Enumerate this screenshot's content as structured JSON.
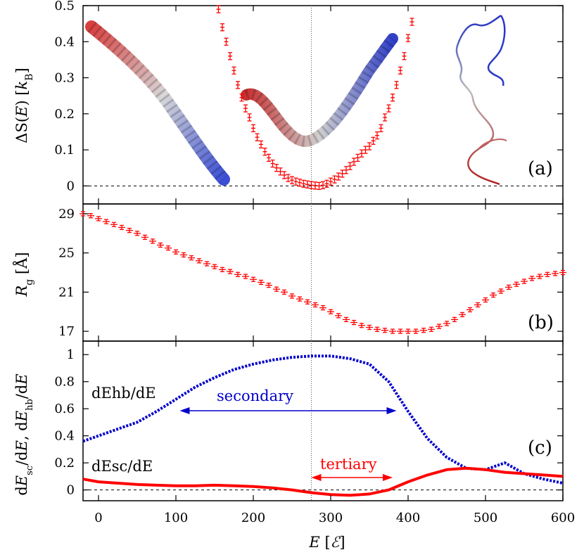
{
  "chart_data": [
    {
      "panel": "(a)",
      "type": "scatter",
      "error_bars": true,
      "ylabel": "ΔS(E) [kB]",
      "ylim": [
        -0.05,
        0.5
      ],
      "yticks": [
        "0",
        "0.1",
        "0.2",
        "0.3",
        "0.4",
        "0.5"
      ],
      "series": [
        {
          "color": "#ff0000",
          "x": [
            155,
            160,
            165,
            170,
            175,
            180,
            185,
            190,
            195,
            200,
            205,
            210,
            215,
            220,
            225,
            230,
            235,
            240,
            245,
            250,
            255,
            260,
            265,
            270,
            275,
            280,
            285,
            290,
            295,
            300,
            305,
            310,
            315,
            320,
            325,
            330,
            335,
            340,
            345,
            350,
            355,
            360,
            365,
            370,
            375,
            380,
            385,
            390,
            395,
            400,
            405
          ],
          "y": [
            0.49,
            0.44,
            0.4,
            0.36,
            0.32,
            0.28,
            0.245,
            0.215,
            0.19,
            0.16,
            0.135,
            0.115,
            0.095,
            0.078,
            0.062,
            0.05,
            0.04,
            0.03,
            0.022,
            0.016,
            0.012,
            0.009,
            0.006,
            0.004,
            0.002,
            0.001,
            0.0,
            0.002,
            0.006,
            0.012,
            0.018,
            0.026,
            0.034,
            0.044,
            0.055,
            0.067,
            0.078,
            0.09,
            0.1,
            0.11,
            0.125,
            0.14,
            0.16,
            0.19,
            0.215,
            0.245,
            0.28,
            0.32,
            0.36,
            0.41,
            0.455
          ]
        }
      ],
      "vline": 275,
      "hline": 0,
      "images": [
        "helix-structure-left",
        "helix-structure-middle",
        "unfolded-structure-right"
      ]
    },
    {
      "panel": "(b)",
      "type": "scatter",
      "error_bars": true,
      "ylabel": "Rg [Å]",
      "ylim": [
        16,
        30
      ],
      "yticks": [
        "17",
        "21",
        "25",
        "29"
      ],
      "series": [
        {
          "color": "#ff0000",
          "x": [
            -20,
            -10,
            0,
            10,
            20,
            30,
            40,
            50,
            60,
            70,
            80,
            90,
            100,
            110,
            120,
            130,
            140,
            150,
            160,
            170,
            180,
            190,
            200,
            210,
            220,
            230,
            240,
            250,
            260,
            270,
            280,
            290,
            300,
            310,
            320,
            330,
            340,
            350,
            360,
            370,
            380,
            390,
            400,
            410,
            420,
            430,
            440,
            450,
            460,
            470,
            480,
            490,
            500,
            510,
            520,
            530,
            540,
            550,
            560,
            570,
            580,
            590,
            600
          ],
          "y": [
            29.0,
            28.8,
            28.5,
            28.2,
            27.9,
            27.6,
            27.3,
            27.0,
            26.6,
            26.2,
            25.8,
            25.5,
            25.1,
            24.8,
            24.5,
            24.2,
            23.9,
            23.6,
            23.3,
            23.1,
            22.8,
            22.6,
            22.3,
            22.0,
            21.7,
            21.3,
            21.0,
            20.6,
            20.3,
            20.0,
            19.7,
            19.4,
            19.0,
            18.6,
            18.2,
            17.9,
            17.6,
            17.4,
            17.2,
            17.1,
            17.0,
            17.0,
            17.0,
            17.0,
            17.1,
            17.2,
            17.5,
            17.8,
            18.2,
            18.7,
            19.2,
            19.7,
            20.2,
            20.7,
            21.1,
            21.5,
            21.8,
            22.1,
            22.4,
            22.6,
            22.8,
            22.9,
            23.0
          ]
        }
      ],
      "vline": 275
    },
    {
      "panel": "(c)",
      "type": "line",
      "xlabel": "E [ℰ]",
      "ylabel": "dEsc/dE, dEhb/dE",
      "xlim": [
        -20,
        600
      ],
      "ylim": [
        -0.08,
        1.1
      ],
      "xticks": [
        "0",
        "100",
        "200",
        "300",
        "400",
        "500",
        "600"
      ],
      "yticks": [
        "0",
        "0.2",
        "0.4",
        "0.6",
        "0.8",
        "1"
      ],
      "series": [
        {
          "name": "dEhb/dE",
          "style": "dotted",
          "color": "#0000cc",
          "x": [
            -20,
            0,
            25,
            50,
            75,
            100,
            125,
            150,
            175,
            200,
            225,
            250,
            275,
            300,
            325,
            350,
            375,
            400,
            425,
            450,
            475,
            500,
            525,
            550,
            575,
            600
          ],
          "y": [
            0.36,
            0.4,
            0.45,
            0.5,
            0.58,
            0.67,
            0.76,
            0.83,
            0.89,
            0.93,
            0.96,
            0.98,
            0.99,
            0.99,
            0.97,
            0.93,
            0.8,
            0.58,
            0.38,
            0.24,
            0.16,
            0.15,
            0.2,
            0.12,
            0.08,
            0.05
          ]
        },
        {
          "name": "dEsc/dE",
          "style": "solid",
          "color": "#ff0000",
          "x": [
            -20,
            0,
            25,
            50,
            75,
            100,
            125,
            150,
            175,
            200,
            225,
            250,
            275,
            300,
            325,
            350,
            375,
            400,
            425,
            450,
            475,
            500,
            525,
            550,
            575,
            600
          ],
          "y": [
            0.08,
            0.06,
            0.05,
            0.04,
            0.035,
            0.03,
            0.03,
            0.035,
            0.03,
            0.025,
            0.015,
            0.0,
            -0.02,
            -0.035,
            -0.04,
            -0.03,
            0.0,
            0.06,
            0.11,
            0.15,
            0.16,
            0.15,
            0.13,
            0.12,
            0.11,
            0.1
          ]
        }
      ],
      "vline": 275,
      "hline": 0,
      "annotations": [
        {
          "text": "secondary",
          "color": "#0000cc",
          "from": 105,
          "to": 385
        },
        {
          "text": "tertiary",
          "color": "#ff0000",
          "from": 275,
          "to": 380
        }
      ]
    }
  ],
  "labels": {
    "panel_a": "(a)",
    "panel_b": "(b)",
    "panel_c": "(c)",
    "hb_curve_label": "dEhb/dE",
    "sc_curve_label": "dEsc/dE",
    "secondary": "secondary",
    "tertiary": "tertiary"
  }
}
